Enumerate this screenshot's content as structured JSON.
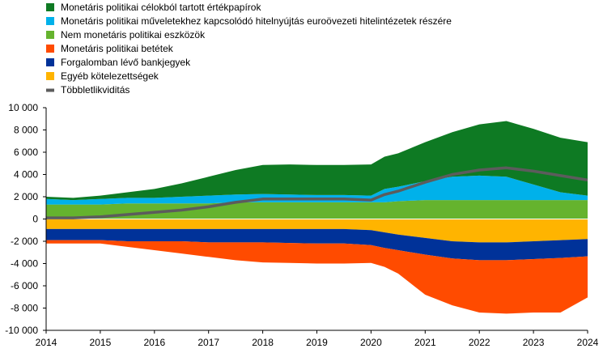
{
  "chart_data": {
    "type": "area",
    "title": "",
    "xlabel": "",
    "ylabel": "",
    "xlim": [
      2014,
      2024
    ],
    "ylim": [
      -10000,
      10000
    ],
    "x_ticks": [
      "2014",
      "2015",
      "2016",
      "2017",
      "2018",
      "2019",
      "2020",
      "2021",
      "2022",
      "2023",
      "2024"
    ],
    "y_ticks": [
      "10 000",
      "8 000",
      "6 000",
      "4 000",
      "2 000",
      "0",
      "-2 000",
      "-4 000",
      "-6 000",
      "-8 000",
      "-10 000"
    ],
    "legend_position": "top-left",
    "x": [
      2014,
      2014.5,
      2015,
      2015.5,
      2016,
      2016.5,
      2017,
      2017.5,
      2018,
      2018.5,
      2019,
      2019.5,
      2020,
      2020.25,
      2020.5,
      2021,
      2021.5,
      2022,
      2022.5,
      2023,
      2023.5,
      2024
    ],
    "series": [
      {
        "name": "Monetáris politikai célokból tartott értékpapírok",
        "kind": "asset",
        "color": "#0e7a23",
        "values": [
          200,
          200,
          300,
          500,
          800,
          1200,
          1700,
          2200,
          2600,
          2700,
          2700,
          2700,
          2800,
          2900,
          3000,
          3500,
          4000,
          4600,
          5000,
          5000,
          4900,
          4800
        ]
      },
      {
        "name": "Monetáris politikai műveletekhez kapcsolódó hitelnyújtás euroövezeti hitelintézetek részére",
        "kind": "asset",
        "color": "#00b1ea",
        "values": [
          500,
          400,
          500,
          500,
          500,
          600,
          700,
          700,
          750,
          700,
          650,
          650,
          600,
          1200,
          1300,
          1700,
          2100,
          2200,
          2100,
          1400,
          700,
          400
        ]
      },
      {
        "name": "Nem monetáris politikai eszközök",
        "kind": "asset",
        "color": "#65b32e",
        "values": [
          1300,
          1300,
          1300,
          1400,
          1400,
          1400,
          1400,
          1500,
          1500,
          1500,
          1500,
          1500,
          1500,
          1500,
          1600,
          1700,
          1700,
          1700,
          1700,
          1700,
          1700,
          1700
        ]
      },
      {
        "name": "Monetáris politikai betétek",
        "kind": "liability",
        "color": "#ff4b00",
        "values": [
          -300,
          -300,
          -300,
          -500,
          -800,
          -1100,
          -1300,
          -1600,
          -1800,
          -1800,
          -1800,
          -1800,
          -1600,
          -1700,
          -2100,
          -3600,
          -4200,
          -4700,
          -4800,
          -4800,
          -4900,
          -3700
        ]
      },
      {
        "name": "Forgalomban lévő bankjegyek",
        "kind": "liability",
        "color": "#003299",
        "values": [
          -1000,
          -1000,
          -1000,
          -1100,
          -1100,
          -1100,
          -1200,
          -1200,
          -1200,
          -1250,
          -1300,
          -1300,
          -1350,
          -1400,
          -1400,
          -1500,
          -1550,
          -1600,
          -1600,
          -1600,
          -1600,
          -1550
        ]
      },
      {
        "name": "Egyéb kötelezettségek",
        "kind": "liability",
        "color": "#ffb400",
        "values": [
          -900,
          -900,
          -900,
          -900,
          -900,
          -900,
          -900,
          -900,
          -900,
          -900,
          -900,
          -900,
          -1000,
          -1200,
          -1400,
          -1700,
          -2000,
          -2100,
          -2100,
          -2000,
          -1900,
          -1800
        ]
      },
      {
        "name": "Többletlikviditás",
        "kind": "line",
        "color": "#5c5c5c",
        "values": [
          100,
          100,
          200,
          400,
          600,
          800,
          1100,
          1500,
          1800,
          1800,
          1800,
          1800,
          1700,
          2200,
          2500,
          3300,
          4000,
          4400,
          4600,
          4300,
          3900,
          3500
        ]
      }
    ]
  }
}
